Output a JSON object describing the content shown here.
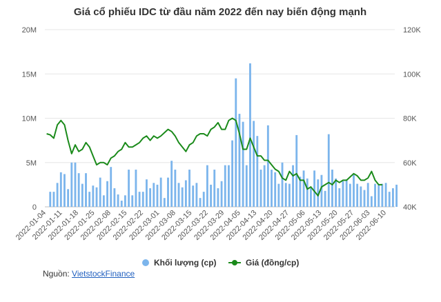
{
  "chart_data": {
    "type": "bar+line",
    "title": "Giá cổ phiếu IDC từ đầu năm 2022 đến nay biến động mạnh",
    "y_left": {
      "ticks": [
        "0",
        "5M",
        "10M",
        "15M",
        "20M"
      ],
      "min": 0,
      "max": 20000000
    },
    "y_right": {
      "ticks": [
        "40K",
        "60K",
        "80K",
        "100K",
        "120K"
      ],
      "min": 40000,
      "max": 120000
    },
    "x_tick_labels": [
      "2022-01-04",
      "2022-01-11",
      "2022-01-18",
      "2022-01-25",
      "2022-02-08",
      "2022-02-15",
      "2022-02-22",
      "2022-03-01",
      "2022-03-08",
      "2022-03-15",
      "2022-03-22",
      "2022-03-29",
      "2022-04-05",
      "2022-04-13",
      "2022-04-20",
      "2022-04-27",
      "2022-05-06",
      "2022-05-13",
      "2022-05-20",
      "2022-05-27",
      "2022-06-03",
      "2022-06-10"
    ],
    "series": [
      {
        "name": "Khối lượng (cp)",
        "type": "bar",
        "color": "#7cb5ec",
        "values": [
          1700000,
          1700000,
          2700000,
          3900000,
          3700000,
          2000000,
          5000000,
          5000000,
          3800000,
          2600000,
          3800000,
          1700000,
          2400000,
          2200000,
          3300000,
          1300000,
          2900000,
          4500000,
          2100000,
          1400000,
          700000,
          1300000,
          4200000,
          1300000,
          4200000,
          1700000,
          1700000,
          3100000,
          2100000,
          2700000,
          2500000,
          3300000,
          1000000,
          3300000,
          5200000,
          4200000,
          2700000,
          2200000,
          3000000,
          4200000,
          2400000,
          2700000,
          1000000,
          1700000,
          4700000,
          2500000,
          4200000,
          2100000,
          2900000,
          4700000,
          4700000,
          7500000,
          14500000,
          10500000,
          9600000,
          4700000,
          16200000,
          9700000,
          8000000,
          4200000,
          4700000,
          9200000,
          4200000,
          3900000,
          2600000,
          5000000,
          2700000,
          2600000,
          4700000,
          8100000,
          3400000,
          4100000,
          3200000,
          2100000,
          4100000,
          3100000,
          3600000,
          1800000,
          8200000,
          4200000,
          3200000,
          2100000,
          2900000,
          3100000,
          2600000,
          3600000,
          2600000,
          2300000,
          1900000,
          2700000,
          1200000,
          2600000,
          2500000,
          2600000,
          2700000,
          1700000,
          2100000,
          2500000
        ],
        "x_start": 1,
        "x_step": 1
      },
      {
        "name": "Giá (đồng/cp)",
        "type": "line",
        "color": "#1a8a1a",
        "values": [
          73000,
          72500,
          71000,
          77000,
          79000,
          77000,
          70000,
          64000,
          68000,
          65000,
          66000,
          69000,
          67000,
          63000,
          59000,
          60000,
          60000,
          59000,
          62000,
          63000,
          65000,
          66000,
          69000,
          67000,
          67000,
          68000,
          69000,
          71000,
          72000,
          70000,
          72000,
          71000,
          72000,
          73500,
          75000,
          74000,
          72000,
          69000,
          67000,
          65000,
          68000,
          69000,
          72000,
          73000,
          73000,
          72000,
          75000,
          76000,
          78000,
          75000,
          75000,
          79000,
          80000,
          79000,
          73000,
          66000,
          66000,
          71000,
          67000,
          63000,
          63000,
          61000,
          61000,
          59000,
          57000,
          56000,
          53000,
          52000,
          56000,
          54000,
          55000,
          52000,
          52000,
          48000,
          49000,
          47000,
          45000,
          49000,
          50000,
          51000,
          50000,
          52000,
          51000,
          52000,
          52000,
          53500,
          55000,
          54000,
          52000,
          52000,
          53000,
          56000,
          52000,
          50000,
          50000
        ],
        "x_start": 0,
        "x_step": 1
      }
    ],
    "legend_position": "bottom-center",
    "grid": true
  },
  "source": {
    "label": "Nguồn:",
    "link_text": "VietstockFinance"
  }
}
